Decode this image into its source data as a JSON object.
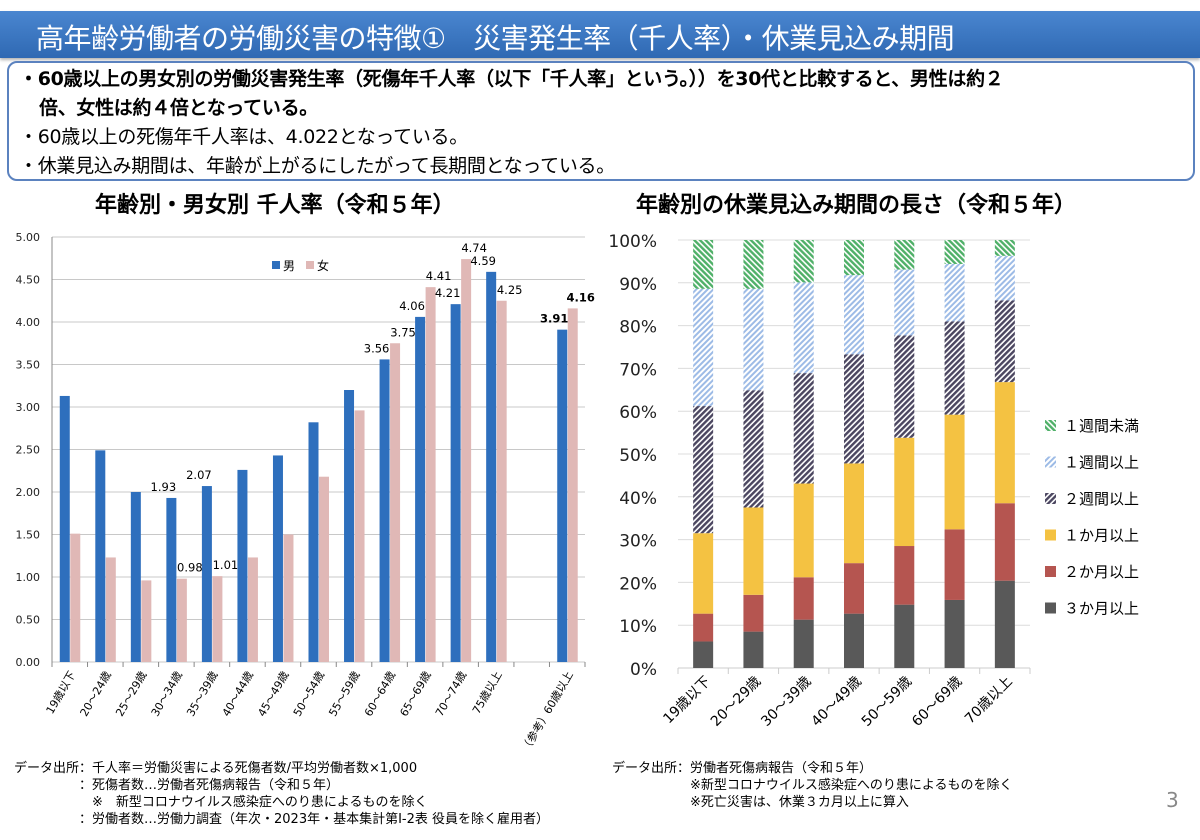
{
  "header": {
    "title": "高年齢労働者の労働災害の特徴①　災害発生率（千人率）・休業見込み期間"
  },
  "summary": {
    "line1": "・60歳以上の男女別の労働災害発生率（死傷年千人率（以下「千人率」という。））を30代と比較すると、男性は約２",
    "line2": "倍、女性は約４倍となっている。",
    "line3": "・60歳以上の死傷年千人率は、4.022となっている。",
    "line4": "・休業見込み期間は、年齢が上がるにしたがって長期間となっている。"
  },
  "chart_data": [
    {
      "type": "bar",
      "title": "年齢別・男女別 千人率（令和５年）",
      "categories": [
        "19歳以下",
        "20～24歳",
        "25～29歳",
        "30～34歳",
        "35～39歳",
        "40～44歳",
        "45～49歳",
        "50～54歳",
        "55～59歳",
        "60～64歳",
        "65～69歳",
        "70～74歳",
        "75歳以上",
        "",
        "（参考）60歳以上"
      ],
      "series": [
        {
          "name": "男",
          "color": "#2e6fbd",
          "values": [
            3.13,
            2.49,
            2.0,
            1.93,
            2.07,
            2.26,
            2.43,
            2.82,
            3.2,
            3.56,
            4.06,
            4.21,
            4.59,
            null,
            3.91
          ],
          "labels": [
            null,
            null,
            null,
            "1.93",
            "2.07",
            null,
            null,
            null,
            null,
            "3.56",
            "4.06",
            "4.21",
            "4.59",
            null,
            "3.91"
          ]
        },
        {
          "name": "女",
          "color": "#e0b8b6",
          "values": [
            1.51,
            1.23,
            0.96,
            0.98,
            1.01,
            1.23,
            1.5,
            2.18,
            2.96,
            3.75,
            4.41,
            4.74,
            4.25,
            null,
            4.16
          ],
          "labels": [
            null,
            null,
            null,
            "0.98",
            "1.01",
            null,
            null,
            null,
            null,
            "3.75",
            "4.41",
            "4.74",
            "4.25",
            null,
            "4.16"
          ]
        }
      ],
      "yticks": [
        "0.00",
        "0.50",
        "1.00",
        "1.50",
        "2.00",
        "2.50",
        "3.00",
        "3.50",
        "4.00",
        "4.50",
        "5.00"
      ],
      "ylim": [
        0,
        5
      ],
      "grid": true,
      "legend": "top-center",
      "source": "データ出所：千人率＝労働災害による死傷者数/平均労働者数×1,000\n　　　　　：死傷者数…労働者死傷病報告（令和５年）\n　　　　　　※　新型コロナウイルス感染症へのり患によるものを除く\n　　　　　：労働者数…労働力調査（年次・2023年・基本集計第I-2表 役員を除く雇用者）"
    },
    {
      "type": "bar",
      "stacked": true,
      "title": "年齢別の休業見込み期間の長さ（令和５年）",
      "categories": [
        "19歳以下",
        "20～29歳",
        "30～39歳",
        "40～49歳",
        "50～59歳",
        "60～69歳",
        "70歳以上"
      ],
      "series": [
        {
          "name": "３か月以上",
          "color": "#595959",
          "pattern": "solid",
          "values": [
            6.2,
            8.5,
            11.3,
            12.7,
            14.8,
            15.9,
            20.4
          ]
        },
        {
          "name": "２か月以上",
          "color": "#b55550",
          "pattern": "solid",
          "values": [
            6.5,
            8.6,
            9.9,
            11.8,
            13.7,
            16.5,
            18.1
          ]
        },
        {
          "name": "１か月以上",
          "color": "#f4c242",
          "pattern": "solid",
          "values": [
            18.8,
            20.4,
            21.9,
            23.3,
            25.3,
            26.8,
            28.3
          ]
        },
        {
          "name": "２週間以上",
          "color": "#4b4660",
          "pattern": "hatch",
          "values": [
            29.7,
            27.4,
            25.8,
            25.5,
            23.9,
            21.8,
            19.1
          ]
        },
        {
          "name": "１週間以上",
          "color": "#9dbbe6",
          "pattern": "hatch",
          "values": [
            27.4,
            23.7,
            21.2,
            18.5,
            15.4,
            13.4,
            10.4
          ]
        },
        {
          "name": "１週間未満",
          "color": "#4fb068",
          "pattern": "hatch",
          "values": [
            11.4,
            11.4,
            9.9,
            8.2,
            6.9,
            5.6,
            3.7
          ]
        }
      ],
      "yticks": [
        "0%",
        "10%",
        "20%",
        "30%",
        "40%",
        "50%",
        "60%",
        "70%",
        "80%",
        "90%",
        "100%"
      ],
      "ylim": [
        0,
        100
      ],
      "grid": true,
      "legend": "right",
      "source": "データ出所：労働者死傷病報告（令和５年）\n　　　　　　※新型コロナウイルス感染症へのり患によるものを除く\n　　　　　　※死亡災害は、休業３カ月以上に算入"
    }
  ],
  "page_number": "3"
}
